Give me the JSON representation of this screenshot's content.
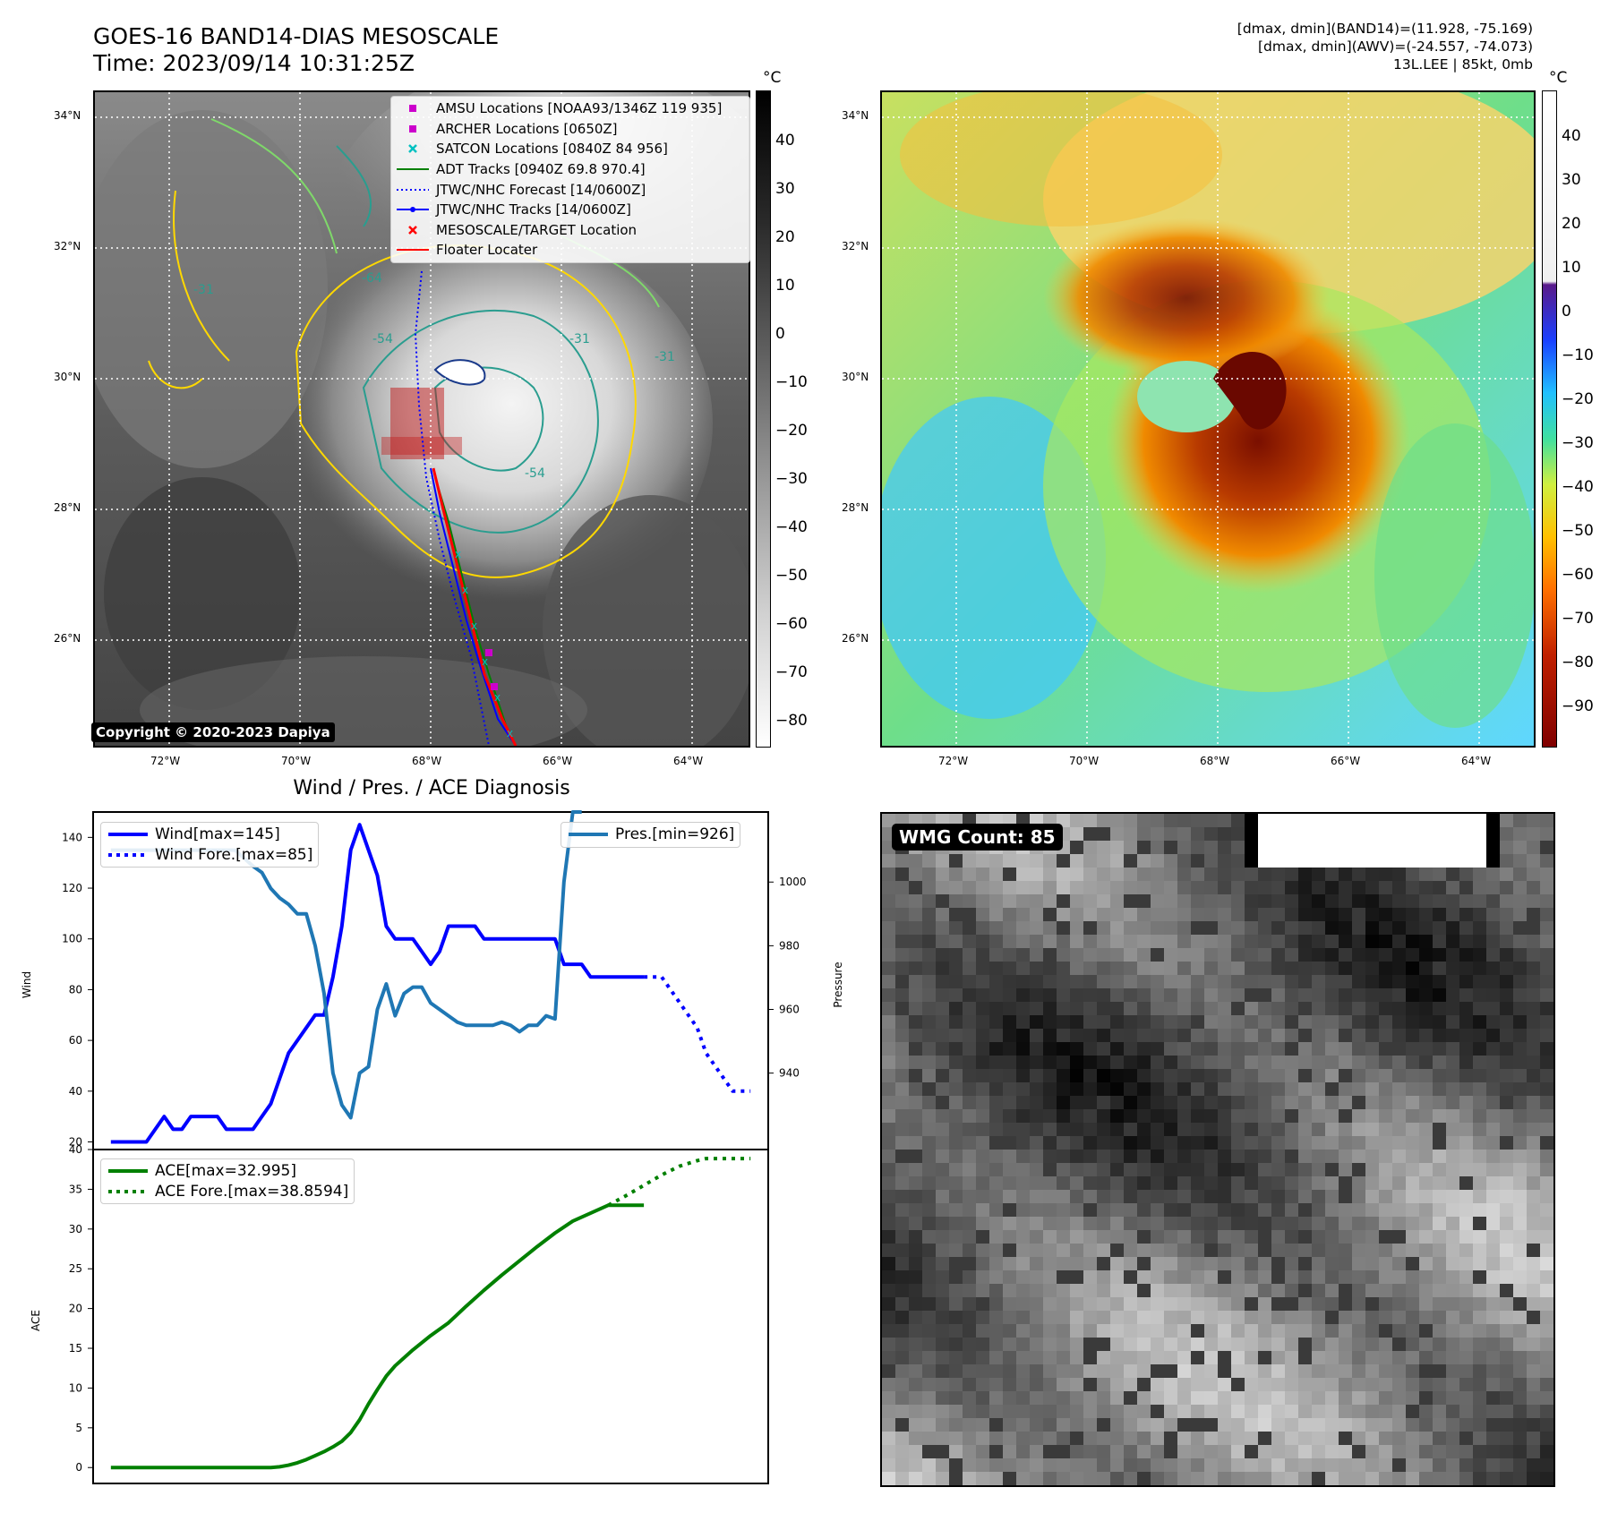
{
  "header": {
    "title_line1": "GOES-16 BAND14-DIAS MESOSCALE",
    "title_line2": "Time: 2023/09/14 10:31:25Z",
    "stats_line1": "[dmax, dmin](BAND14)=(11.928, -75.169)",
    "stats_line2": "[dmax, dmin](AWV)=(-24.557, -74.073)",
    "stats_line3": "13L.LEE | 85kt, 0mb"
  },
  "map_axes": {
    "lat_labels": [
      "34°N",
      "32°N",
      "30°N",
      "28°N",
      "26°N"
    ],
    "lon_labels": [
      "72°W",
      "70°W",
      "68°W",
      "66°W",
      "64°W"
    ]
  },
  "ir_panel": {
    "colorbar_unit": "°C",
    "colorbar_ticks": [
      "40",
      "30",
      "20",
      "10",
      "0",
      "−10",
      "−20",
      "−30",
      "−40",
      "−50",
      "−60",
      "−70",
      "−80"
    ],
    "contour_labels": [
      "-64",
      "-54",
      "-54",
      "-31",
      "-31",
      "-31"
    ],
    "copyright": "Copyright © 2020-2023 Dapiya",
    "legend": [
      {
        "label": "AMSU Locations [NOAA93/1346Z 119 935]",
        "symbol": "square",
        "color": "#cc00cc"
      },
      {
        "label": "ARCHER Locations [0650Z]",
        "symbol": "square",
        "color": "#cc00cc"
      },
      {
        "label": "SATCON Locations [0840Z 84 956]",
        "symbol": "x",
        "color": "#00c0c0"
      },
      {
        "label": "ADT Tracks [0940Z 69.8 970.4]",
        "symbol": "line",
        "color": "#008000"
      },
      {
        "label": "JTWC/NHC Forecast [14/0600Z]",
        "symbol": "dotted",
        "color": "#0000ff"
      },
      {
        "label": "JTWC/NHC Tracks [14/0600Z]",
        "symbol": "line-dot",
        "color": "#0000ff"
      },
      {
        "label": "MESOSCALE/TARGET Location",
        "symbol": "x",
        "color": "#ff0000"
      },
      {
        "label": "Floater Locater",
        "symbol": "line",
        "color": "#ff0000"
      }
    ]
  },
  "color_panel": {
    "colorbar_unit": "°C",
    "colorbar_ticks": [
      "40",
      "30",
      "20",
      "10",
      "0",
      "−10",
      "−20",
      "−30",
      "−40",
      "−50",
      "−60",
      "−70",
      "−80",
      "−90"
    ]
  },
  "wmg_panel": {
    "label": "WMG Count: 85"
  },
  "chart_data": [
    {
      "type": "line",
      "title": "Wind / Pres. / ACE Diagnosis",
      "ylabel": "Wind",
      "ylabel_right": "Pressure",
      "ylim": [
        17,
        150
      ],
      "ylim_right": [
        916,
        1022
      ],
      "y_ticks": [
        20,
        40,
        60,
        80,
        100,
        120,
        140
      ],
      "y_ticks_right": [
        940,
        960,
        980,
        1000
      ],
      "legend_left": [
        "Wind[max=145]",
        "Wind Fore.[max=85]"
      ],
      "legend_right": [
        "Pres.[min=926]"
      ],
      "series": [
        {
          "name": "Wind[max=145]",
          "color": "#0000ff",
          "style": "solid",
          "x": [
            0,
            2,
            4,
            6,
            7,
            8,
            9,
            10,
            11,
            12,
            13,
            14,
            15,
            16,
            17,
            18,
            19,
            20,
            21,
            22,
            23,
            24,
            25,
            26,
            27,
            28,
            29,
            30,
            31,
            32,
            33,
            34,
            35,
            36,
            37,
            38,
            39,
            40,
            41,
            42,
            43,
            44,
            45,
            46,
            47,
            48,
            49,
            50,
            51,
            52,
            53,
            54,
            55,
            56,
            57,
            58,
            59,
            60
          ],
          "values": [
            20,
            20,
            20,
            30,
            25,
            25,
            30,
            30,
            30,
            30,
            25,
            25,
            25,
            25,
            30,
            35,
            45,
            55,
            60,
            65,
            70,
            70,
            85,
            105,
            135,
            145,
            135,
            125,
            105,
            100,
            100,
            100,
            95,
            90,
            95,
            105,
            105,
            105,
            105,
            100,
            100,
            100,
            100,
            100,
            100,
            100,
            100,
            100,
            90,
            90,
            90,
            85,
            85,
            85,
            85,
            85,
            85,
            85
          ]
        },
        {
          "name": "Wind Fore.[max=85]",
          "color": "#0000ff",
          "style": "dotted",
          "x": [
            60,
            62,
            63,
            64,
            65,
            66,
            67,
            68,
            69,
            70,
            71,
            72
          ],
          "values": [
            85,
            85,
            80,
            75,
            70,
            65,
            55,
            50,
            45,
            40,
            40,
            40
          ]
        },
        {
          "name": "Pres.[min=926]",
          "color": "#1f77b4",
          "style": "solid",
          "axis": "right",
          "x": [
            0,
            2,
            4,
            6,
            8,
            10,
            12,
            14,
            16,
            17,
            18,
            19,
            20,
            21,
            22,
            23,
            24,
            25,
            26,
            27,
            28,
            29,
            30,
            31,
            32,
            33,
            34,
            35,
            36,
            37,
            38,
            39,
            40,
            41,
            42,
            43,
            44,
            45,
            46,
            47,
            48,
            49,
            50,
            51,
            52,
            53
          ],
          "values": [
            1010,
            1010,
            1010,
            1010,
            1010,
            1010,
            1010,
            1010,
            1005,
            1003,
            998,
            995,
            993,
            990,
            990,
            980,
            965,
            940,
            930,
            926,
            940,
            942,
            960,
            968,
            958,
            965,
            967,
            967,
            962,
            960,
            958,
            956,
            955,
            955,
            955,
            955,
            956,
            955,
            953,
            955,
            955,
            958,
            957,
            1000,
            1022,
            1022
          ]
        }
      ]
    },
    {
      "type": "line",
      "ylabel": "ACE",
      "ylim": [
        -2,
        40
      ],
      "y_ticks": [
        0,
        5,
        10,
        15,
        20,
        25,
        30,
        35,
        40
      ],
      "legend": [
        "ACE[max=32.995]",
        "ACE Fore.[max=38.8594]"
      ],
      "series": [
        {
          "name": "ACE[max=32.995]",
          "color": "#008000",
          "style": "solid",
          "x": [
            0,
            5,
            10,
            15,
            18,
            19,
            20,
            21,
            22,
            23,
            24,
            25,
            26,
            27,
            28,
            29,
            30,
            31,
            32,
            34,
            36,
            38,
            40,
            42,
            44,
            46,
            48,
            50,
            52,
            54,
            56,
            58,
            60
          ],
          "values": [
            0,
            0,
            0,
            0,
            0,
            0.1,
            0.3,
            0.6,
            1.0,
            1.5,
            2.0,
            2.6,
            3.3,
            4.4,
            6.0,
            8.0,
            9.8,
            11.5,
            12.8,
            14.8,
            16.6,
            18.2,
            20.3,
            22.3,
            24.2,
            26.0,
            27.8,
            29.5,
            31.0,
            32.0,
            32.995,
            32.995,
            32.995
          ]
        },
        {
          "name": "ACE Fore.[max=38.8594]",
          "color": "#008000",
          "style": "dotted",
          "x": [
            56,
            58,
            60,
            62,
            64,
            66,
            67,
            68,
            70,
            72
          ],
          "values": [
            32.995,
            34.2,
            35.5,
            36.8,
            37.9,
            38.6,
            38.86,
            38.86,
            38.86,
            38.86
          ]
        }
      ]
    }
  ]
}
